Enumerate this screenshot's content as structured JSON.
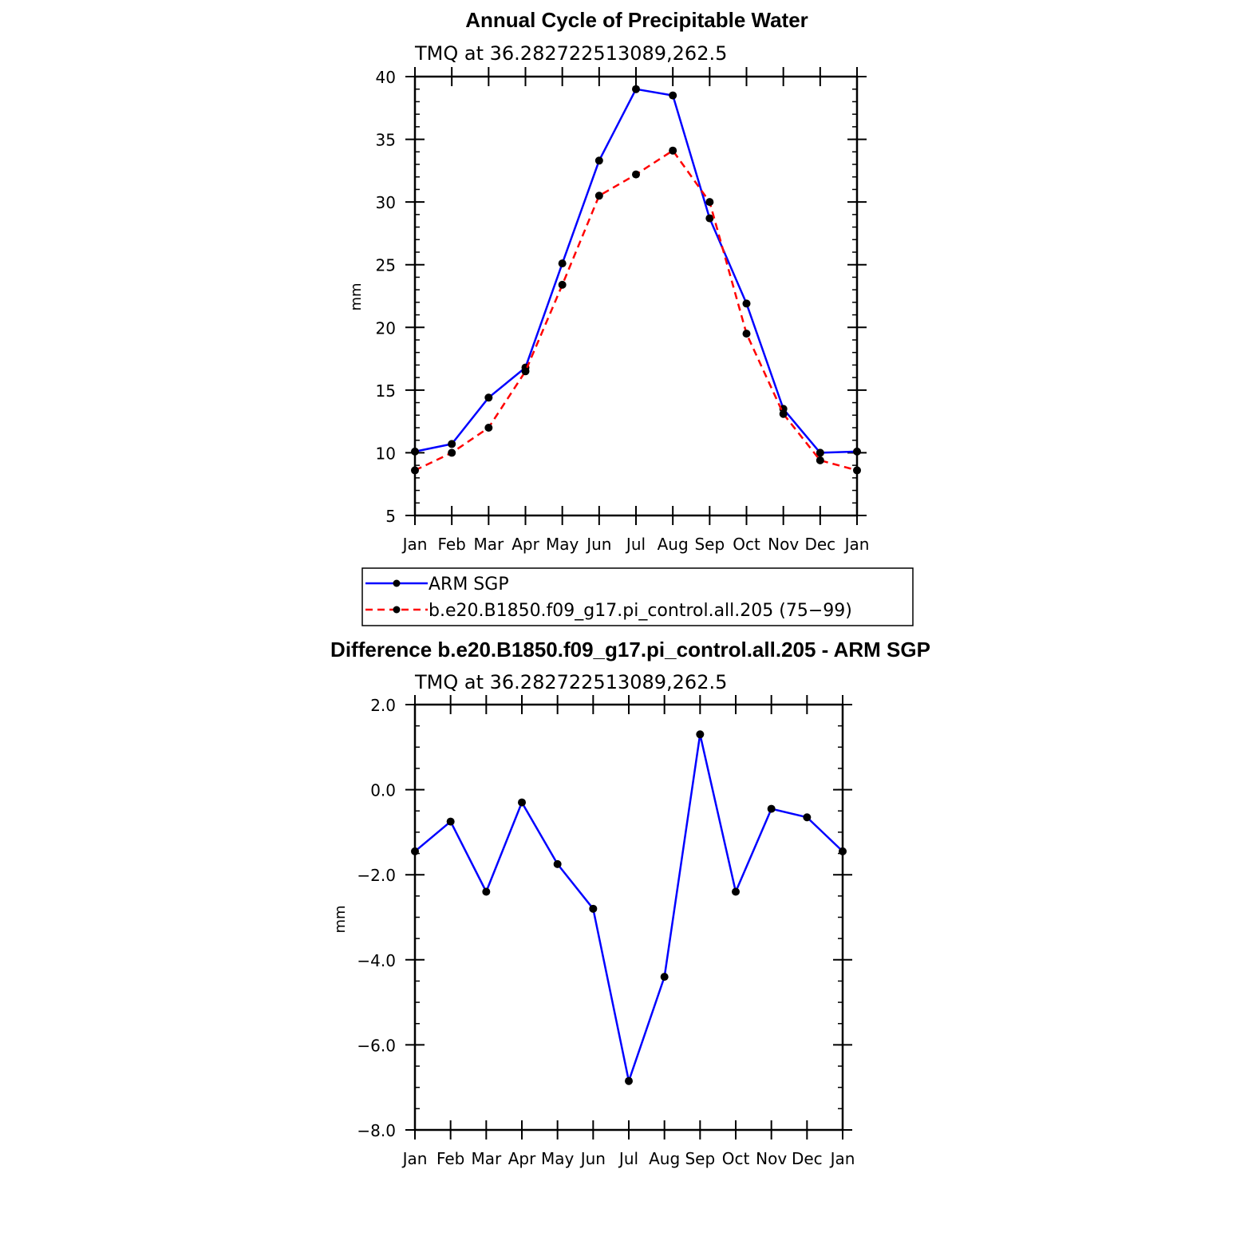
{
  "chart_data": [
    {
      "type": "line",
      "title": "Annual Cycle of Precipitable Water",
      "subtitle": "TMQ at 36.282722513089,262.5",
      "xlabel": "",
      "ylabel": "mm",
      "categories": [
        "Jan",
        "Feb",
        "Mar",
        "Apr",
        "May",
        "Jun",
        "Jul",
        "Aug",
        "Sep",
        "Oct",
        "Nov",
        "Dec",
        "Jan"
      ],
      "ylim": [
        5,
        40
      ],
      "yticks": [
        "5",
        "10",
        "15",
        "20",
        "25",
        "30",
        "35",
        "40"
      ],
      "yticks_values": [
        5,
        10,
        15,
        20,
        25,
        30,
        35,
        40
      ],
      "series": [
        {
          "name": "ARM SGP",
          "color": "#0000ff",
          "style": "solid",
          "values": [
            10.1,
            10.7,
            14.4,
            16.8,
            25.1,
            33.3,
            39.0,
            38.5,
            28.7,
            21.9,
            13.5,
            10.0,
            10.1
          ]
        },
        {
          "name": "b.e20.B1850.f09_g17.pi_control.all.205 (75−99)",
          "color": "#ff0000",
          "style": "dashed",
          "values": [
            8.6,
            10.0,
            12.0,
            16.5,
            23.4,
            30.5,
            32.2,
            34.1,
            30.0,
            19.5,
            13.1,
            9.4,
            8.6
          ]
        }
      ],
      "legend": "below"
    },
    {
      "type": "line",
      "title": "Difference b.e20.B1850.f09_g17.pi_control.all.205 - ARM SGP",
      "subtitle": "TMQ at 36.282722513089,262.5",
      "xlabel": "",
      "ylabel": "mm",
      "categories": [
        "Jan",
        "Feb",
        "Mar",
        "Apr",
        "May",
        "Jun",
        "Jul",
        "Aug",
        "Sep",
        "Oct",
        "Nov",
        "Dec",
        "Jan"
      ],
      "ylim": [
        -8,
        2
      ],
      "yticks": [
        "−8.0",
        "−6.0",
        "−4.0",
        "−2.0",
        "0.0",
        "2.0"
      ],
      "yticks_values": [
        -8,
        -6,
        -4,
        -2,
        0,
        2
      ],
      "series": [
        {
          "color": "#0000ff",
          "style": "solid",
          "values": [
            -1.45,
            -0.75,
            -2.4,
            -0.3,
            -1.75,
            -2.8,
            -6.85,
            -4.4,
            1.3,
            -2.4,
            -0.45,
            -0.65,
            -1.45
          ]
        }
      ]
    }
  ]
}
